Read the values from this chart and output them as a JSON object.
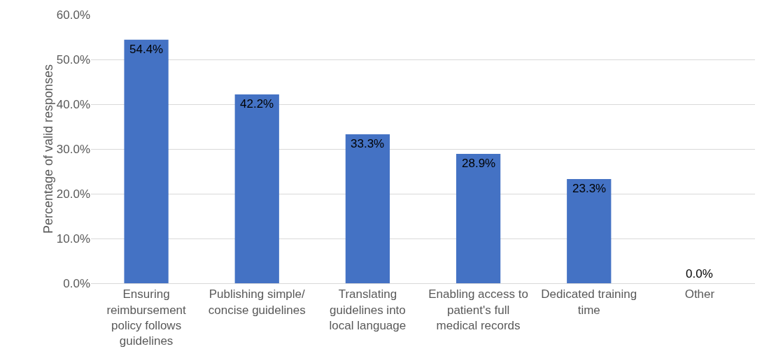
{
  "chart_data": {
    "type": "bar",
    "ylabel": "Percentage of valid responses",
    "categories": [
      "Ensuring reimbursement policy follows guidelines",
      "Publishing simple/ concise guidelines",
      "Translating guidelines into local language",
      "Enabling access to patient's full medical records",
      "Dedicated training time",
      "Other"
    ],
    "values": [
      54.4,
      42.2,
      33.3,
      28.9,
      23.3,
      0
    ],
    "value_labels": [
      "54.4%",
      "42.2%",
      "33.3%",
      "28.9%",
      "23.3%",
      "0.0%"
    ],
    "color": "#4472c4",
    "ylim": [
      0,
      60
    ],
    "yticks": [
      {
        "value": 0,
        "label": "0.0%"
      },
      {
        "value": 10,
        "label": "10.0%"
      },
      {
        "value": 20,
        "label": "20.0%"
      },
      {
        "value": 30,
        "label": "30.0%"
      },
      {
        "value": 40,
        "label": "40.0%"
      },
      {
        "value": 50,
        "label": "50.0%"
      },
      {
        "value": 60,
        "label": "60.0%"
      }
    ],
    "grid": "y"
  }
}
